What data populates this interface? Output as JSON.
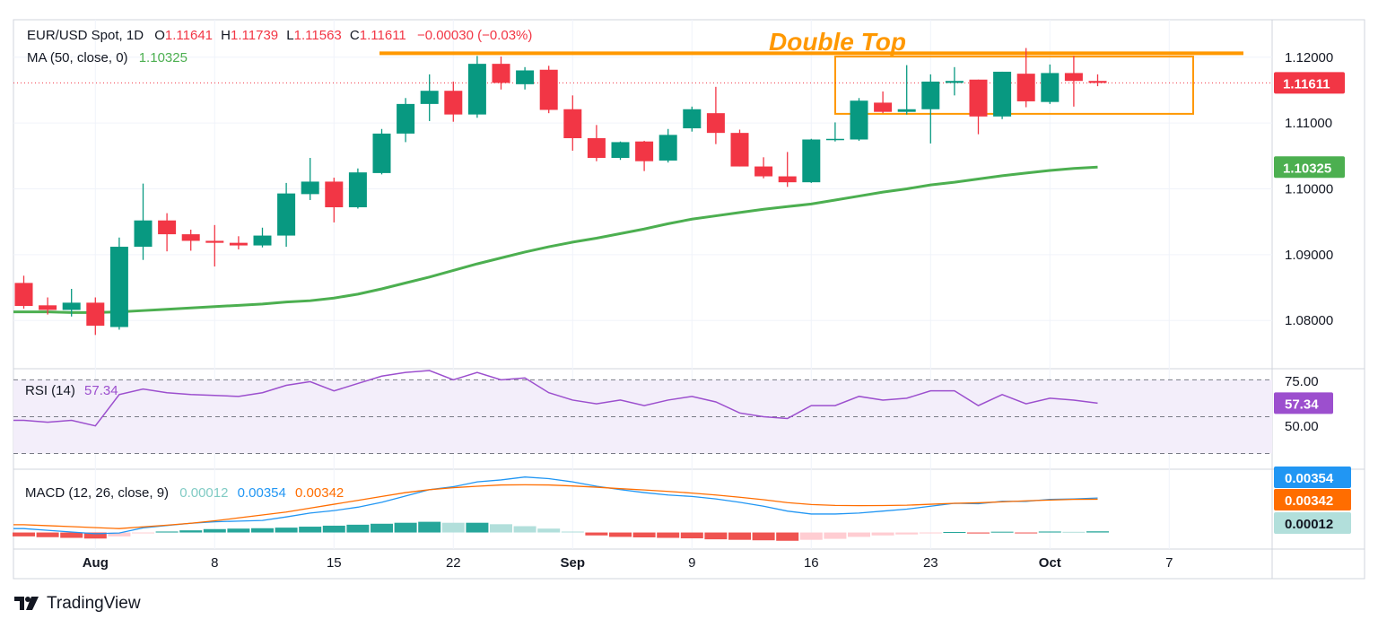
{
  "header": {
    "symbol": "EUR/USD Spot, 1D",
    "o_label": "O",
    "o_value": "1.11641",
    "h_label": "H",
    "h_value": "1.11739",
    "l_label": "L",
    "l_value": "1.11563",
    "c_label": "C",
    "c_value": "1.11611",
    "change": "−0.00030 (−0.03%)"
  },
  "ma_legend": {
    "label": "MA (50, close, 0)",
    "value": "1.10325"
  },
  "rsi_legend": {
    "label": "RSI (14)",
    "value": "57.34"
  },
  "macd_legend": {
    "label": "MACD (12, 26, close, 9)",
    "hist": "0.00012",
    "macd": "0.00354",
    "signal": "0.00342"
  },
  "annotation": {
    "text": "Double Top"
  },
  "brand": {
    "name": "TradingView"
  },
  "colors": {
    "up": "#089981",
    "down": "#f23645",
    "ma": "#4caf50",
    "rsi": "#9c4fce",
    "macd": "#2196f3",
    "signal": "#ff6d00",
    "annotation": "#ff9800",
    "hist_up_strong": "#26a69a",
    "hist_up_weak": "#b2dfdb",
    "hist_down_strong": "#ef5350",
    "hist_down_weak": "#ffcdd2"
  },
  "price_badges": {
    "last": {
      "value": "1.11611",
      "color": "#f23645"
    },
    "ma": {
      "value": "1.10325",
      "color": "#4caf50"
    }
  },
  "rsi_badge": {
    "value": "57.34",
    "color": "#9c4fce"
  },
  "macd_badges": [
    {
      "value": "0.00354",
      "color": "#2196f3"
    },
    {
      "value": "0.00342",
      "color": "#ff6d00"
    },
    {
      "value": "0.00012",
      "color": "#b2dfdb"
    }
  ],
  "chart_data": {
    "type": "candlestick",
    "price_axis": {
      "ticks": [
        "1.12000",
        "1.11000",
        "1.10000",
        "1.09000",
        "1.08000"
      ],
      "tick_values": [
        1.12,
        1.11,
        1.1,
        1.09,
        1.08
      ],
      "range": [
        1.0728,
        1.1257
      ]
    },
    "rsi_axis": {
      "ticks": [
        "75.00",
        "50.00"
      ],
      "levels": [
        70,
        50,
        30
      ],
      "range": [
        22,
        76
      ]
    },
    "x_axis": {
      "labels": [
        "Aug",
        "8",
        "15",
        "22",
        "Sep",
        "9",
        "16",
        "23",
        "Oct",
        "7"
      ],
      "label_day_index": [
        3,
        8,
        13,
        18,
        23,
        28,
        33,
        38,
        43,
        48
      ]
    },
    "candles": [
      {
        "o": 1.0857,
        "h": 1.0868,
        "l": 1.0818,
        "c": 1.0822
      },
      {
        "o": 1.0823,
        "h": 1.0835,
        "l": 1.0809,
        "c": 1.0816
      },
      {
        "o": 1.0816,
        "h": 1.0848,
        "l": 1.0806,
        "c": 1.0827
      },
      {
        "o": 1.0827,
        "h": 1.0835,
        "l": 1.0778,
        "c": 1.0792
      },
      {
        "o": 1.079,
        "h": 1.0926,
        "l": 1.0786,
        "c": 1.0912
      },
      {
        "o": 1.0912,
        "h": 1.1008,
        "l": 1.0892,
        "c": 1.0952
      },
      {
        "o": 1.0952,
        "h": 1.0963,
        "l": 1.0905,
        "c": 1.0931
      },
      {
        "o": 1.0931,
        "h": 1.0938,
        "l": 1.0906,
        "c": 1.0921
      },
      {
        "o": 1.0921,
        "h": 1.0945,
        "l": 1.0882,
        "c": 1.0918
      },
      {
        "o": 1.0918,
        "h": 1.0928,
        "l": 1.0908,
        "c": 1.0914
      },
      {
        "o": 1.0914,
        "h": 1.0941,
        "l": 1.0911,
        "c": 1.0929
      },
      {
        "o": 1.0929,
        "h": 1.1009,
        "l": 1.0912,
        "c": 1.0993
      },
      {
        "o": 1.0992,
        "h": 1.1047,
        "l": 1.0983,
        "c": 1.1011
      },
      {
        "o": 1.1011,
        "h": 1.1017,
        "l": 1.0949,
        "c": 1.0972
      },
      {
        "o": 1.0972,
        "h": 1.1031,
        "l": 1.097,
        "c": 1.1025
      },
      {
        "o": 1.1024,
        "h": 1.1091,
        "l": 1.1022,
        "c": 1.1084
      },
      {
        "o": 1.1084,
        "h": 1.1138,
        "l": 1.1071,
        "c": 1.1129
      },
      {
        "o": 1.1129,
        "h": 1.1174,
        "l": 1.1103,
        "c": 1.1149
      },
      {
        "o": 1.1149,
        "h": 1.1163,
        "l": 1.1102,
        "c": 1.1113
      },
      {
        "o": 1.1113,
        "h": 1.1202,
        "l": 1.1108,
        "c": 1.119
      },
      {
        "o": 1.119,
        "h": 1.1201,
        "l": 1.1151,
        "c": 1.1161
      },
      {
        "o": 1.1159,
        "h": 1.1185,
        "l": 1.1151,
        "c": 1.118
      },
      {
        "o": 1.1181,
        "h": 1.1187,
        "l": 1.1115,
        "c": 1.112
      },
      {
        "o": 1.1121,
        "h": 1.1142,
        "l": 1.1058,
        "c": 1.1077
      },
      {
        "o": 1.1077,
        "h": 1.1097,
        "l": 1.1042,
        "c": 1.1047
      },
      {
        "o": 1.1047,
        "h": 1.1072,
        "l": 1.1044,
        "c": 1.1071
      },
      {
        "o": 1.1072,
        "h": 1.1073,
        "l": 1.1027,
        "c": 1.1042
      },
      {
        "o": 1.1043,
        "h": 1.1091,
        "l": 1.104,
        "c": 1.1082
      },
      {
        "o": 1.1092,
        "h": 1.1125,
        "l": 1.1087,
        "c": 1.1121
      },
      {
        "o": 1.1115,
        "h": 1.1155,
        "l": 1.1068,
        "c": 1.1085
      },
      {
        "o": 1.1085,
        "h": 1.109,
        "l": 1.1034,
        "c": 1.1034
      },
      {
        "o": 1.1034,
        "h": 1.1048,
        "l": 1.1016,
        "c": 1.1019
      },
      {
        "o": 1.1019,
        "h": 1.1056,
        "l": 1.1003,
        "c": 1.101
      },
      {
        "o": 1.101,
        "h": 1.1076,
        "l": 1.1009,
        "c": 1.1075
      },
      {
        "o": 1.1074,
        "h": 1.1101,
        "l": 1.1072,
        "c": 1.1076
      },
      {
        "o": 1.1075,
        "h": 1.1138,
        "l": 1.1073,
        "c": 1.1134
      },
      {
        "o": 1.1131,
        "h": 1.1148,
        "l": 1.1115,
        "c": 1.1117
      },
      {
        "o": 1.1117,
        "h": 1.1188,
        "l": 1.1113,
        "c": 1.1121
      },
      {
        "o": 1.1121,
        "h": 1.1174,
        "l": 1.1069,
        "c": 1.1163
      },
      {
        "o": 1.1161,
        "h": 1.1185,
        "l": 1.1142,
        "c": 1.1164
      },
      {
        "o": 1.1166,
        "h": 1.1166,
        "l": 1.1083,
        "c": 1.111
      },
      {
        "o": 1.111,
        "h": 1.1178,
        "l": 1.1106,
        "c": 1.1178
      },
      {
        "o": 1.1175,
        "h": 1.1214,
        "l": 1.1124,
        "c": 1.1133
      },
      {
        "o": 1.1132,
        "h": 1.1189,
        "l": 1.1129,
        "c": 1.1176
      },
      {
        "o": 1.1176,
        "h": 1.1202,
        "l": 1.1125,
        "c": 1.1164
      },
      {
        "o": 1.1164,
        "h": 1.1174,
        "l": 1.1156,
        "c": 1.1161
      }
    ],
    "ma50": [
      1.0813,
      1.0813,
      1.0812,
      1.0812,
      1.0813,
      1.0815,
      1.0817,
      1.0819,
      1.0821,
      1.0823,
      1.0825,
      1.0828,
      1.083,
      1.0834,
      1.084,
      1.0848,
      1.0857,
      1.0866,
      1.0876,
      1.0886,
      1.0895,
      1.0904,
      1.0912,
      1.0919,
      1.0925,
      1.0932,
      1.0939,
      1.0947,
      1.0954,
      1.0959,
      1.0964,
      1.0969,
      1.0973,
      1.0977,
      1.0983,
      1.0989,
      1.0995,
      1.1,
      1.1006,
      1.101,
      1.1015,
      1.102,
      1.1024,
      1.1028,
      1.1031,
      1.1033
    ],
    "rsi": [
      48,
      47,
      48,
      45,
      62,
      65,
      63,
      62,
      61.5,
      61,
      63,
      67,
      69,
      64,
      68,
      72,
      74,
      75,
      70,
      74,
      70,
      71,
      63,
      59,
      57,
      59,
      56,
      59,
      61,
      58,
      52,
      50,
      49,
      56,
      56,
      61,
      59,
      60,
      64,
      64,
      56,
      62,
      57,
      60,
      59,
      57.34
    ],
    "macd": [
      0.0004,
      0.00022,
      5e-05,
      -0.00012,
      -5e-05,
      0.00048,
      0.00072,
      0.00095,
      0.0011,
      0.00117,
      0.00124,
      0.0016,
      0.002,
      0.00225,
      0.0026,
      0.0031,
      0.00375,
      0.0044,
      0.0047,
      0.0052,
      0.0054,
      0.0057,
      0.00553,
      0.0052,
      0.00475,
      0.0044,
      0.0041,
      0.00385,
      0.0037,
      0.00345,
      0.0031,
      0.0027,
      0.0022,
      0.0019,
      0.0019,
      0.002,
      0.0022,
      0.0024,
      0.0027,
      0.003,
      0.00295,
      0.0032,
      0.0032,
      0.0034,
      0.00345,
      0.00354
    ],
    "signal": [
      0.0008,
      0.0007,
      0.0006,
      0.0005,
      0.0004,
      0.00058,
      0.00075,
      0.00095,
      0.0012,
      0.0015,
      0.0018,
      0.0021,
      0.0025,
      0.0029,
      0.0033,
      0.0037,
      0.0041,
      0.0044,
      0.0046,
      0.00475,
      0.00488,
      0.0049,
      0.00488,
      0.00478,
      0.00465,
      0.0045,
      0.00437,
      0.00422,
      0.00405,
      0.00385,
      0.00362,
      0.00337,
      0.00307,
      0.00287,
      0.00278,
      0.00276,
      0.00277,
      0.0028,
      0.0029,
      0.003,
      0.00305,
      0.00315,
      0.00325,
      0.00333,
      0.0034,
      0.00342
    ],
    "hist": [
      -0.0004,
      -0.00048,
      -0.00055,
      -0.00062,
      -0.0004,
      -5e-05,
      0.0001,
      0.00022,
      0.00035,
      0.0004,
      0.00044,
      0.0005,
      0.0006,
      0.0007,
      0.0008,
      0.0009,
      0.001,
      0.0011,
      0.001,
      0.001,
      0.00085,
      0.00065,
      0.0004,
      0.0001,
      -0.0003,
      -0.00045,
      -0.0005,
      -0.00055,
      -0.0006,
      -0.0007,
      -0.00075,
      -0.0008,
      -0.00085,
      -0.00075,
      -0.00065,
      -0.00045,
      -0.0003,
      -0.0002,
      -5e-05,
      5e-05,
      -0.0001,
      8e-05,
      -5e-05,
      0.0001,
      7e-05,
      0.00012
    ],
    "resistance_level": 1.1206,
    "range_box": {
      "start_index": 34,
      "end_index": 50,
      "top": 1.1201,
      "bottom": 1.1114
    }
  }
}
